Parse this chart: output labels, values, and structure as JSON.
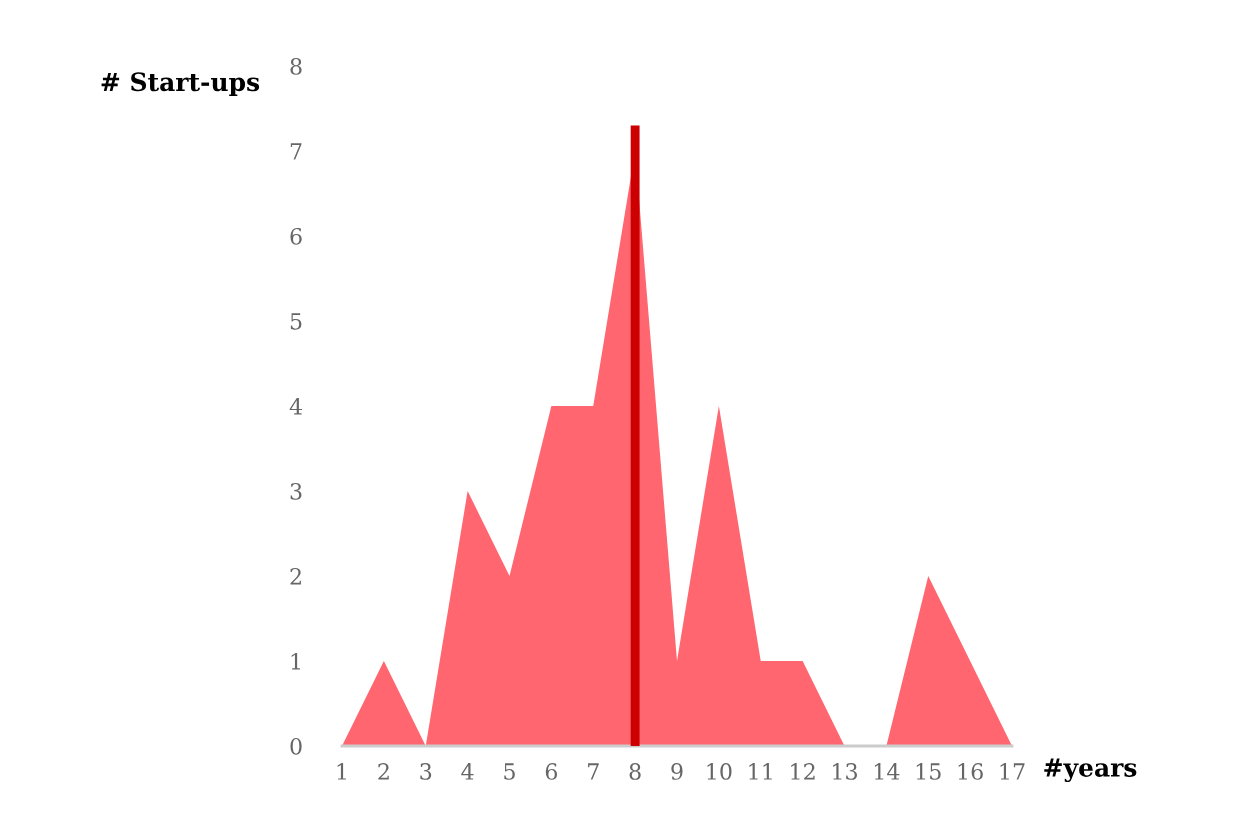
{
  "chart_data": {
    "type": "area",
    "xlabel": "#years",
    "ylabel": "# Start-ups",
    "x": [
      1,
      2,
      3,
      4,
      5,
      6,
      7,
      8,
      9,
      10,
      11,
      12,
      13,
      14,
      15,
      16,
      17
    ],
    "series": [
      {
        "color": "#ff6670",
        "values": [
          0,
          1,
          0,
          3,
          2,
          4,
          4,
          7,
          1,
          4,
          1,
          1,
          0,
          0,
          2,
          1,
          0
        ]
      },
      {
        "type": "line",
        "color": "#cc0000",
        "x": [
          8,
          8
        ],
        "values": [
          0,
          7.3
        ]
      }
    ],
    "xlim": [
      1,
      17
    ],
    "ylim": [
      0,
      8
    ],
    "xticks": [
      1,
      2,
      3,
      4,
      5,
      6,
      7,
      8,
      9,
      10,
      11,
      12,
      13,
      14,
      15,
      16,
      17
    ],
    "yticks": [
      0,
      1,
      2,
      3,
      4,
      5,
      6,
      7,
      8
    ],
    "grid": false
  }
}
